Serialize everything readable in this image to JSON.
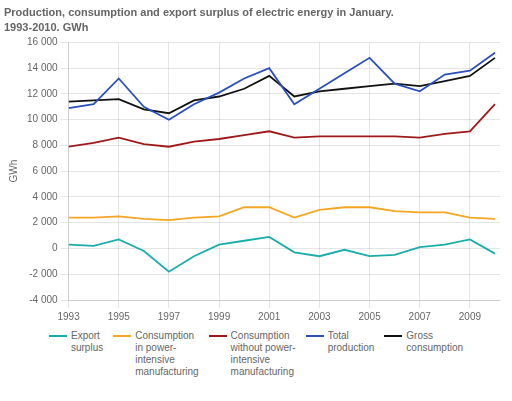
{
  "chart_data": {
    "type": "line",
    "title": "Production, consumption and export surplus of electric energy in January.",
    "subtitle": "1993-2010. GWh",
    "ylabel": "GWh",
    "x": [
      1993,
      1994,
      1995,
      1996,
      1997,
      1998,
      1999,
      2000,
      2001,
      2002,
      2003,
      2004,
      2005,
      2006,
      2007,
      2008,
      2009,
      2010
    ],
    "series": [
      {
        "name": "Export\nsurplus",
        "color": "#1aadaa",
        "values": [
          300,
          200,
          700,
          -200,
          -1800,
          -600,
          300,
          600,
          900,
          -300,
          -600,
          -100,
          -600,
          -500,
          100,
          300,
          700,
          -400
        ]
      },
      {
        "name": "Consumption\nin power-\nintensive\nmanufacturing",
        "color": "#f5a623",
        "values": [
          2400,
          2400,
          2500,
          2300,
          2200,
          2400,
          2500,
          3200,
          3200,
          2400,
          3000,
          3200,
          3200,
          2900,
          2800,
          2800,
          2400,
          2300
        ]
      },
      {
        "name": "Consumption\nwithout power-\nintensive\nmanufacturing",
        "color": "#9e1a1a",
        "values": [
          7900,
          8200,
          8600,
          8100,
          7900,
          8300,
          8500,
          8800,
          9100,
          8600,
          8700,
          8700,
          8700,
          8700,
          8600,
          8900,
          9100,
          11200
        ]
      },
      {
        "name": "Total\nproduction",
        "color": "#2c4fbd",
        "values": [
          10900,
          11200,
          13200,
          11000,
          10000,
          11200,
          12100,
          13200,
          14000,
          11200,
          12400,
          13600,
          14800,
          12800,
          12200,
          13500,
          13800,
          15200
        ]
      },
      {
        "name": "Gross\nconsumption",
        "color": "#111111",
        "values": [
          11400,
          11500,
          11600,
          10800,
          10500,
          11500,
          11800,
          12400,
          13400,
          11800,
          12200,
          12400,
          12600,
          12800,
          12600,
          13000,
          13400,
          14800
        ]
      }
    ],
    "xlim": [
      1993,
      2010.2
    ],
    "xticks": [
      1993,
      1995,
      1997,
      1999,
      2001,
      2003,
      2005,
      2007,
      2009
    ],
    "ylim": [
      -4000,
      16000
    ],
    "yticks": [
      {
        "value": -4000,
        "label": "-4 000"
      },
      {
        "value": -2000,
        "label": "-2 000"
      },
      0,
      {
        "value": 2000,
        "label": "2 000"
      },
      {
        "value": 4000,
        "label": "4 000"
      },
      {
        "value": 6000,
        "label": "6 000"
      },
      {
        "value": 8000,
        "label": "8 000"
      },
      {
        "value": 10000,
        "label": "10 000"
      },
      {
        "value": 12000,
        "label": "12 000"
      },
      {
        "value": 14000,
        "label": "14 000"
      },
      {
        "value": 16000,
        "label": "16 000"
      }
    ],
    "grid": true,
    "legend": "bottom"
  }
}
